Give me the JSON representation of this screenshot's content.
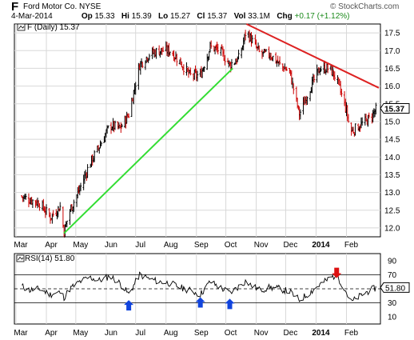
{
  "header": {
    "symbol": "F",
    "company": "Ford Motor Co.  NYSE",
    "brand_prefix": "© ",
    "brand": "StockCharts.com",
    "date": "4-Mar-2014",
    "open_label": "Op",
    "open": "15.33",
    "high_label": "Hi",
    "high": "15.39",
    "low_label": "Lo",
    "low": "15.27",
    "close_label": "Cl",
    "close": "15.37",
    "volume_label": "Vol",
    "volume": "33.1M",
    "change_label": "Chg",
    "change": "+0.17 (+1.12%)"
  },
  "colors": {
    "candles": "#000000",
    "down_candles": "#cc0000",
    "support_line": "#33dd33",
    "resistance_line": "#dd2222",
    "grid": "#d8d8d8",
    "rsi_line": "#000000",
    "buy_arrow": "#1144dd",
    "sell_arrow": "#dd1111"
  },
  "chart_data": [
    {
      "type": "line",
      "subtype": "ohlc-bars",
      "legend": "F (Daily) 15.37",
      "y_ticks": [
        12.0,
        12.5,
        13.0,
        13.5,
        14.0,
        14.5,
        15.0,
        15.5,
        16.0,
        16.5,
        17.0,
        17.5
      ],
      "y_tick_labels": [
        "12.0",
        "12.5",
        "13.0",
        "13.5",
        "14.0",
        "14.5",
        "15.0",
        "15.5",
        "16.0",
        "16.5",
        "17.0",
        "17.5"
      ],
      "ylim": [
        11.75,
        17.75
      ],
      "x_labels": [
        "Apr",
        "May",
        "Jun",
        "Jul",
        "Aug",
        "Sep",
        "Oct",
        "Nov",
        "Dec",
        "2014",
        "Feb",
        "Mar"
      ],
      "x_label_bold": [
        false,
        false,
        false,
        false,
        false,
        false,
        false,
        false,
        false,
        true,
        false,
        false
      ],
      "last_price_label": "15.37",
      "series": [
        {
          "x": [
            "Mar-05",
            "Mar-15",
            "Mar-25",
            "Apr-05",
            "Apr-15",
            "Apr-19",
            "Apr-25",
            "May-05",
            "May-15",
            "May-25",
            "Jun-05",
            "Jun-15",
            "Jun-24",
            "Jul-05",
            "Jul-15",
            "Jul-25",
            "Aug-05",
            "Aug-15",
            "Aug-25",
            "Sep-05",
            "Sep-15",
            "Sep-25",
            "Oct-05",
            "Oct-15",
            "Oct-22",
            "Oct-25",
            "Nov-05",
            "Nov-15",
            "Nov-25",
            "Dec-05",
            "Dec-15",
            "Dec-25",
            "Jan-05",
            "Jan-15",
            "Jan-22",
            "Feb-01",
            "Feb-05",
            "Feb-15",
            "Feb-25",
            "Mar-04"
          ],
          "values": [
            12.9,
            12.8,
            12.7,
            12.3,
            12.6,
            11.9,
            12.5,
            13.1,
            13.8,
            14.3,
            14.9,
            14.8,
            15.2,
            16.6,
            16.9,
            17.0,
            17.0,
            16.7,
            16.3,
            16.3,
            17.1,
            17.0,
            16.6,
            16.8,
            17.6,
            17.4,
            16.9,
            16.9,
            16.6,
            16.4,
            15.2,
            15.9,
            16.5,
            16.5,
            16.2,
            15.3,
            14.7,
            14.9,
            15.1,
            15.37
          ]
        }
      ],
      "trendlines": [
        {
          "name": "support",
          "from": [
            "Apr-19",
            11.85
          ],
          "to": [
            "Oct-08",
            16.5
          ]
        },
        {
          "name": "resistance",
          "from": [
            "Oct-22",
            17.75
          ],
          "to": [
            "Mar-06",
            15.95
          ]
        }
      ]
    },
    {
      "type": "line",
      "legend": "RSI(14) 51.80",
      "y_ticks": [
        10,
        30,
        50,
        70,
        90
      ],
      "y_tick_labels": [
        "10",
        "30",
        "50",
        "70",
        "90"
      ],
      "ylim": [
        0,
        100
      ],
      "reference_lines": [
        30,
        50,
        70
      ],
      "x_labels": [
        "Apr",
        "May",
        "Jun",
        "Jul",
        "Aug",
        "Sep",
        "Oct",
        "Nov",
        "Dec",
        "2014",
        "Feb",
        "Mar"
      ],
      "x_label_bold": [
        false,
        false,
        false,
        false,
        false,
        false,
        false,
        false,
        false,
        true,
        false,
        false
      ],
      "last_value_label": "51.80",
      "series": [
        {
          "x": [
            "Mar-05",
            "Mar-15",
            "Mar-25",
            "Apr-05",
            "Apr-15",
            "Apr-19",
            "Apr-25",
            "May-05",
            "May-15",
            "May-25",
            "Jun-05",
            "Jun-15",
            "Jun-24",
            "Jul-05",
            "Jul-15",
            "Jul-25",
            "Aug-05",
            "Aug-15",
            "Aug-25",
            "Sep-05",
            "Sep-15",
            "Sep-25",
            "Oct-05",
            "Oct-15",
            "Oct-22",
            "Oct-25",
            "Nov-05",
            "Nov-15",
            "Nov-25",
            "Dec-05",
            "Dec-15",
            "Dec-25",
            "Jan-05",
            "Jan-15",
            "Jan-22",
            "Feb-01",
            "Feb-05",
            "Feb-15",
            "Feb-25",
            "Mar-04"
          ],
          "values": [
            55,
            48,
            50,
            42,
            45,
            38,
            50,
            60,
            66,
            62,
            68,
            58,
            42,
            70,
            64,
            60,
            58,
            52,
            48,
            42,
            60,
            52,
            44,
            54,
            62,
            56,
            48,
            52,
            50,
            46,
            34,
            44,
            56,
            65,
            70,
            45,
            30,
            40,
            48,
            51.8
          ]
        }
      ],
      "markers": [
        {
          "kind": "buy",
          "x": "Jun-24",
          "value": 34
        },
        {
          "kind": "buy",
          "x": "Sep-05",
          "value": 38
        },
        {
          "kind": "buy",
          "x": "Oct-05",
          "value": 36
        },
        {
          "kind": "sell",
          "x": "Jan-22",
          "value": 80
        }
      ]
    }
  ]
}
